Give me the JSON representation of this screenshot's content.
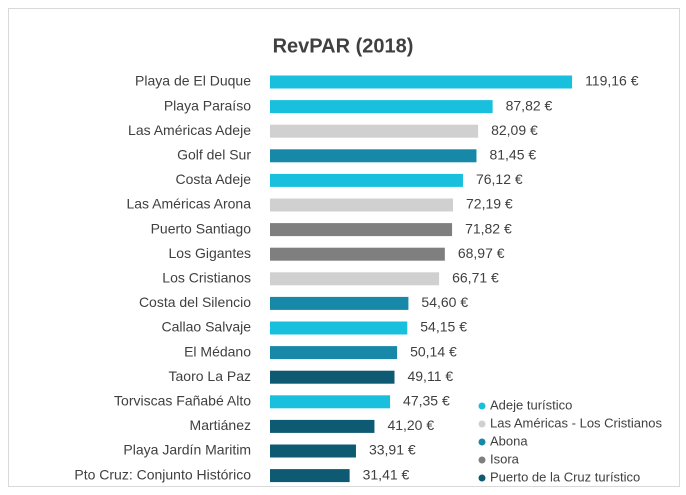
{
  "chart_data": {
    "type": "bar",
    "orientation": "horizontal",
    "title": "RevPAR (2018)",
    "categories": [
      "Playa de El Duque",
      "Playa Paraíso",
      "Las Américas Adeje",
      "Golf del Sur",
      "Costa Adeje",
      "Las Américas Arona",
      "Puerto Santiago",
      "Los Gigantes",
      "Los Cristianos",
      "Costa del Silencio",
      "Callao Salvaje",
      "El Médano",
      "Taoro La Paz",
      "Torviscas Fañabé Alto",
      "Martiánez",
      "Playa Jardín Maritim",
      "Pto Cruz: Conjunto Histórico"
    ],
    "series": [
      {
        "name": "Adeje turístico",
        "color": "#19c0dd",
        "values": [
          119.16,
          87.82,
          null,
          null,
          76.12,
          null,
          null,
          null,
          null,
          null,
          54.15,
          null,
          null,
          47.35,
          null,
          null,
          null
        ],
        "value_labels": [
          "119,16 €",
          "87,82 €",
          null,
          null,
          "76,12 €",
          null,
          null,
          null,
          null,
          null,
          "54,15 €",
          null,
          null,
          "47,35 €",
          null,
          null,
          null
        ]
      },
      {
        "name": "Las Américas - Los Cristianos",
        "color": "#d0d0d0",
        "values": [
          null,
          null,
          82.09,
          null,
          null,
          72.19,
          null,
          null,
          66.71,
          null,
          null,
          null,
          null,
          null,
          null,
          null,
          null
        ],
        "value_labels": [
          null,
          null,
          "82,09 €",
          null,
          null,
          "72,19 €",
          null,
          null,
          "66,71 €",
          null,
          null,
          null,
          null,
          null,
          null,
          null,
          null
        ]
      },
      {
        "name": "Abona",
        "color": "#1888a8",
        "values": [
          null,
          null,
          null,
          81.45,
          null,
          null,
          null,
          null,
          null,
          54.6,
          null,
          50.14,
          null,
          null,
          null,
          null,
          null
        ],
        "value_labels": [
          null,
          null,
          null,
          "81,45 €",
          null,
          null,
          null,
          null,
          null,
          "54,60 €",
          null,
          "50,14 €",
          null,
          null,
          null,
          null,
          null
        ]
      },
      {
        "name": "Isora",
        "color": "#7f7f7f",
        "values": [
          null,
          null,
          null,
          null,
          null,
          null,
          71.82,
          68.97,
          null,
          null,
          null,
          null,
          null,
          null,
          null,
          null,
          null
        ],
        "value_labels": [
          null,
          null,
          null,
          null,
          null,
          null,
          "71,82 €",
          "68,97 €",
          null,
          null,
          null,
          null,
          null,
          null,
          null,
          null,
          null
        ]
      },
      {
        "name": "Puerto de la Cruz turístico",
        "color": "#0e5a72",
        "values": [
          null,
          null,
          null,
          null,
          null,
          null,
          null,
          null,
          null,
          null,
          null,
          null,
          49.11,
          null,
          41.2,
          33.91,
          31.41
        ],
        "value_labels": [
          null,
          null,
          null,
          null,
          null,
          null,
          null,
          null,
          null,
          null,
          null,
          null,
          "49,11 €",
          null,
          "41,20 €",
          "33,91 €",
          "31,41 €"
        ]
      }
    ],
    "legend": "lower-right"
  }
}
